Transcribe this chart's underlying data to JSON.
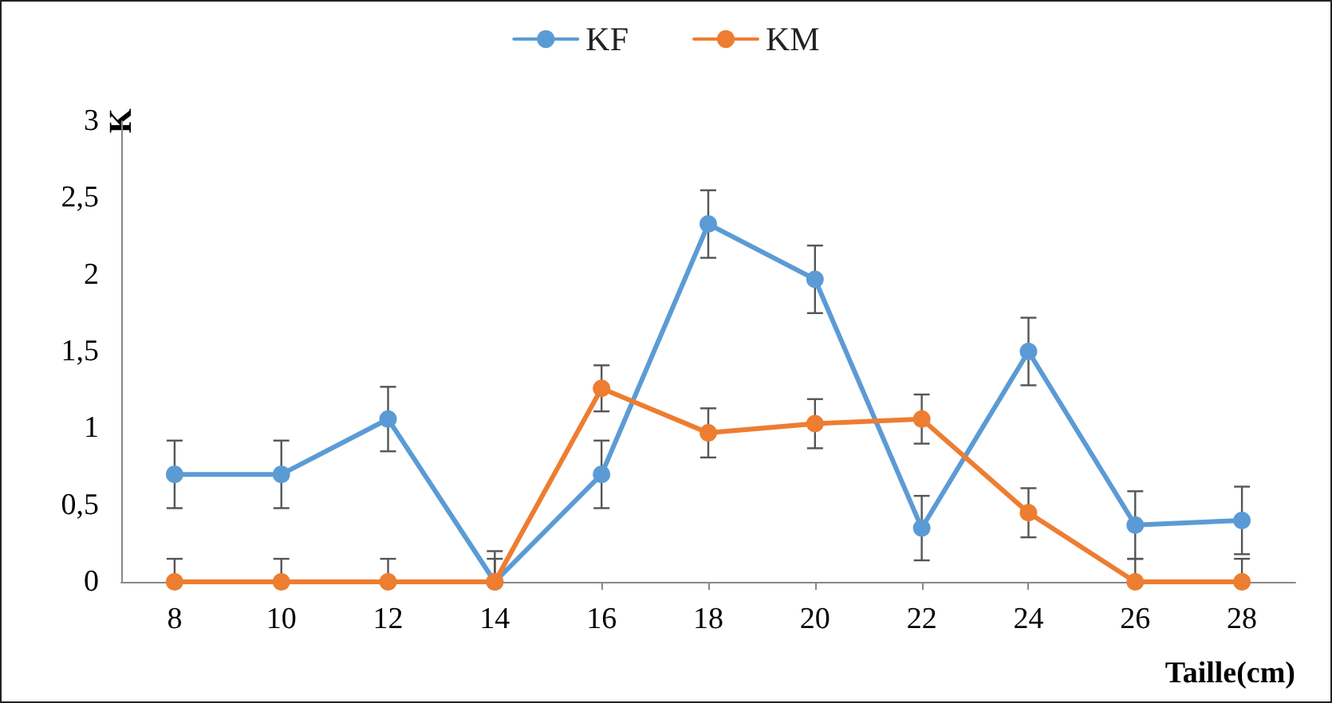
{
  "chart_data": {
    "type": "line",
    "xlabel": "Taille(cm)",
    "ylabel": "K",
    "categories": [
      "8",
      "10",
      "12",
      "14",
      "16",
      "18",
      "20",
      "22",
      "24",
      "26",
      "28"
    ],
    "series": [
      {
        "name": "KF",
        "color": "#5b9bd5",
        "values": [
          0.7,
          0.7,
          1.06,
          0,
          0.7,
          2.33,
          1.97,
          0.35,
          1.5,
          0.37,
          0.4
        ],
        "errors": [
          0.22,
          0.22,
          0.21,
          [
            0,
            0.2
          ],
          0.22,
          0.22,
          0.22,
          0.21,
          0.22,
          0.22,
          0.22
        ]
      },
      {
        "name": "KM",
        "color": "#ed7d31",
        "values": [
          0,
          0,
          0,
          0,
          1.26,
          0.97,
          1.03,
          1.06,
          0.45,
          0,
          0
        ],
        "errors": [
          [
            0,
            0.15
          ],
          [
            0,
            0.15
          ],
          [
            0,
            0.15
          ],
          [
            0,
            0.15
          ],
          0.15,
          0.16,
          0.16,
          0.16,
          0.16,
          [
            0,
            0.15
          ],
          [
            0,
            0.15
          ]
        ]
      }
    ],
    "ylim": [
      0,
      3
    ],
    "yticks": [
      0,
      {
        "value": 0.5,
        "label": "0,5"
      },
      1,
      {
        "value": 1.5,
        "label": "1,5"
      },
      2,
      {
        "value": 2.5,
        "label": "2,5"
      },
      3
    ],
    "grid": false,
    "legend": "top",
    "marker": "circle",
    "line_style": "solid"
  }
}
